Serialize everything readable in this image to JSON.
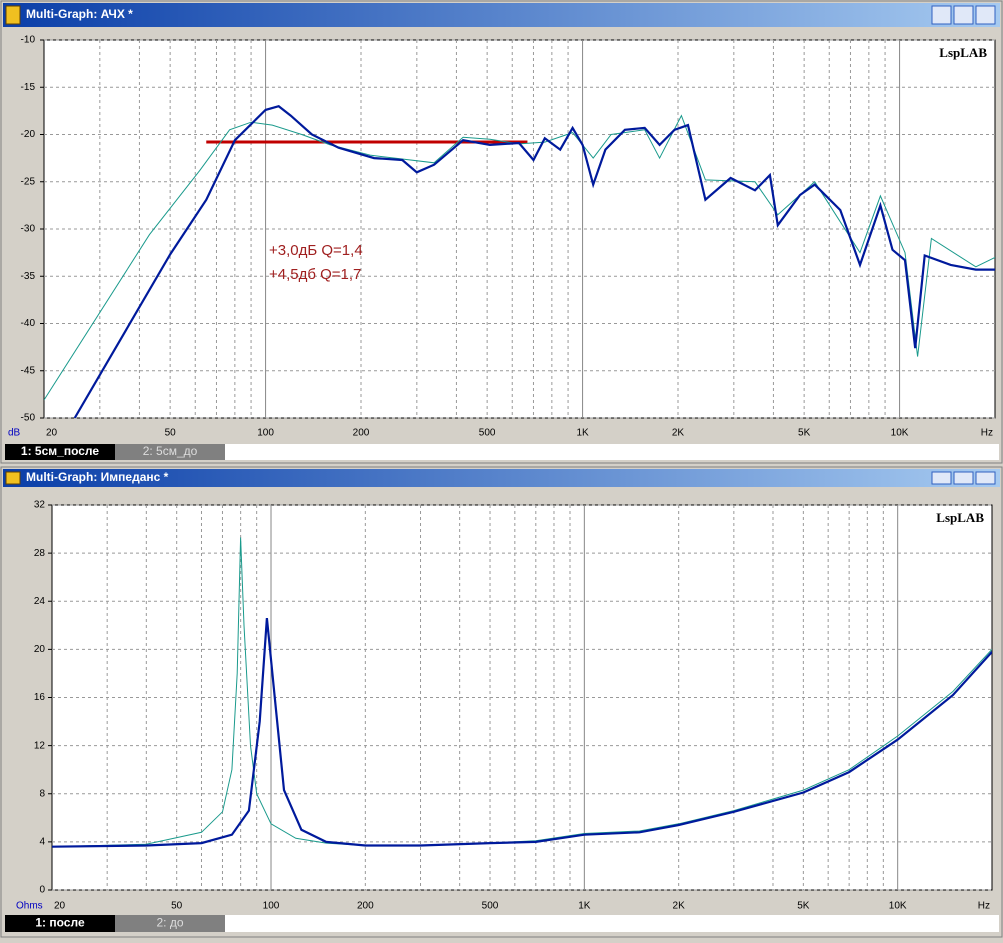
{
  "chart_data": [
    {
      "type": "line",
      "window_title": "Multi-Graph: АЧХ *",
      "watermark": "LspLAB",
      "x_unit": "Hz",
      "y_unit": "dB",
      "xscale": "log",
      "xlim": [
        20,
        20000
      ],
      "ylim": [
        -50,
        -10
      ],
      "xticks": [
        20,
        50,
        100,
        200,
        500,
        {
          "value": 1000,
          "label": "1K"
        },
        {
          "value": 2000,
          "label": "2K"
        },
        {
          "value": 5000,
          "label": "5K"
        },
        {
          "value": 10000,
          "label": "10K"
        }
      ],
      "xgrid": [
        30,
        40,
        60,
        70,
        80,
        90,
        300,
        400,
        600,
        700,
        800,
        900,
        3000,
        4000,
        6000,
        7000,
        8000,
        9000
      ],
      "yticks": [
        -50,
        -45,
        -40,
        -35,
        -30,
        -25,
        -20,
        -15,
        -10
      ],
      "grid": true,
      "series": [
        {
          "name": "1: 5см_после",
          "color": "#001a9c",
          "width": 2.2,
          "x": [
            25,
            50,
            65,
            80,
            100,
            110,
            120,
            140,
            170,
            220,
            270,
            300,
            340,
            420,
            510,
            630,
            700,
            760,
            850,
            930,
            1000,
            1080,
            1180,
            1360,
            1570,
            1750,
            1950,
            2150,
            2440,
            2930,
            3500,
            3900,
            4130,
            4850,
            5400,
            6500,
            7500,
            8700,
            9500,
            10400,
            11200,
            12000,
            14500,
            17400,
            20000
          ],
          "values": [
            -50,
            -32.7,
            -26.9,
            -20.6,
            -17.4,
            -17,
            -18,
            -20,
            -21.4,
            -22.5,
            -22.7,
            -24,
            -23.2,
            -20.6,
            -21.1,
            -20.9,
            -22.7,
            -20.4,
            -21.6,
            -19.3,
            -21.1,
            -25.3,
            -21.6,
            -19.5,
            -19.3,
            -21.1,
            -19.5,
            -19,
            -26.9,
            -24.6,
            -25.9,
            -24.3,
            -29.6,
            -26.4,
            -25.3,
            -28,
            -33.8,
            -27.5,
            -32.2,
            -33.3,
            -42.6,
            -32.8,
            -33.8,
            -34.3,
            -34.3
          ]
        },
        {
          "name": "2: 5см_до",
          "color": "#1a9a8c",
          "width": 1,
          "x": [
            20,
            43,
            62,
            77,
            90,
            105,
            130,
            160,
            215,
            340,
            420,
            510,
            630,
            760,
            930,
            1080,
            1230,
            1570,
            1750,
            2050,
            2440,
            3500,
            4130,
            5400,
            7500,
            8700,
            10400,
            11400,
            12600,
            17400,
            20000
          ],
          "values": [
            -48.1,
            -30.6,
            -23.8,
            -19.5,
            -18.7,
            -19,
            -20,
            -21.1,
            -22.2,
            -23,
            -20.3,
            -20.5,
            -21,
            -20.8,
            -19.8,
            -22.5,
            -20,
            -19.5,
            -22.5,
            -18,
            -24.8,
            -25,
            -28.5,
            -25,
            -32.5,
            -26.5,
            -32.5,
            -43.5,
            -31,
            -34,
            -33
          ]
        }
      ],
      "hline": {
        "y": -20.8,
        "x": [
          65,
          670
        ],
        "color": "#c00000"
      },
      "annotations": [
        "+3,0дБ Q=1,4",
        "+4,5дб Q=1,7"
      ]
    },
    {
      "type": "line",
      "window_title": "Multi-Graph: Импеданс *",
      "watermark": "LspLAB",
      "x_unit": "Hz",
      "y_unit": "Ohms",
      "xscale": "log",
      "xlim": [
        20,
        20000
      ],
      "ylim": [
        0,
        32
      ],
      "xticks": [
        20,
        50,
        100,
        200,
        500,
        {
          "value": 1000,
          "label": "1K"
        },
        {
          "value": 2000,
          "label": "2K"
        },
        {
          "value": 5000,
          "label": "5K"
        },
        {
          "value": 10000,
          "label": "10K"
        }
      ],
      "xgrid": [
        30,
        40,
        60,
        70,
        80,
        90,
        300,
        400,
        600,
        700,
        800,
        900,
        3000,
        4000,
        6000,
        7000,
        8000,
        9000
      ],
      "yticks": [
        0,
        4,
        8,
        12,
        16,
        20,
        24,
        28,
        32
      ],
      "grid": true,
      "series": [
        {
          "name": "1: после",
          "color": "#001a9c",
          "width": 2.2,
          "x": [
            20,
            40,
            60,
            75,
            85,
            92,
            97,
            103,
            110,
            125,
            150,
            200,
            300,
            500,
            700,
            1000,
            1500,
            2000,
            3000,
            5000,
            7000,
            10000,
            15000,
            20000
          ],
          "values": [
            3.6,
            3.7,
            3.9,
            4.6,
            6.6,
            14,
            22.6,
            15.8,
            8.3,
            5,
            4,
            3.7,
            3.7,
            3.9,
            4,
            4.6,
            4.8,
            5.4,
            6.5,
            8.1,
            9.8,
            12.5,
            16.2,
            19.8
          ]
        },
        {
          "name": "2: до",
          "color": "#1a9a8c",
          "width": 1,
          "x": [
            20,
            40,
            60,
            70,
            75,
            78,
            80,
            82,
            86,
            90,
            100,
            120,
            150,
            200,
            300,
            500,
            700,
            1000,
            1500,
            2000,
            3000,
            5000,
            7000,
            10000,
            15000,
            20000
          ],
          "values": [
            3.6,
            3.8,
            4.8,
            6.5,
            10,
            18,
            29.3,
            22,
            12,
            8,
            5.5,
            4.3,
            3.9,
            3.7,
            3.7,
            3.9,
            4.1,
            4.7,
            4.9,
            5.5,
            6.6,
            8.3,
            10,
            12.8,
            16.5,
            20
          ]
        }
      ]
    }
  ]
}
